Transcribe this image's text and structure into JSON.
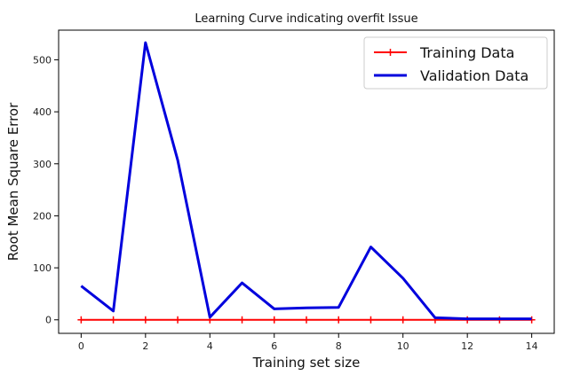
{
  "chart_data": {
    "type": "line",
    "title": "Learning Curve indicating overfit Issue",
    "xlabel": "Training set size",
    "ylabel": "Root Mean Square Error",
    "x": [
      0,
      1,
      2,
      3,
      4,
      5,
      6,
      7,
      8,
      9,
      10,
      11,
      12,
      13,
      14
    ],
    "xlim": [
      -0.7,
      14.7
    ],
    "ylim": [
      -26,
      557
    ],
    "xticks": [
      0,
      2,
      4,
      6,
      8,
      10,
      12,
      14
    ],
    "yticks": [
      0,
      100,
      200,
      300,
      400,
      500
    ],
    "grid": false,
    "legend_position": "top-right",
    "series": [
      {
        "name": "Training Data",
        "color": "#ff0000",
        "marker": "+",
        "values": [
          0,
          0,
          0,
          0,
          0,
          0,
          0,
          0,
          0,
          0,
          0,
          0,
          0,
          0,
          0
        ]
      },
      {
        "name": "Validation Data",
        "color": "#0000dd",
        "marker": "none",
        "values": [
          65,
          17,
          533,
          307,
          5,
          71,
          21,
          23,
          24,
          140,
          80,
          4,
          2,
          2,
          2
        ]
      }
    ]
  }
}
